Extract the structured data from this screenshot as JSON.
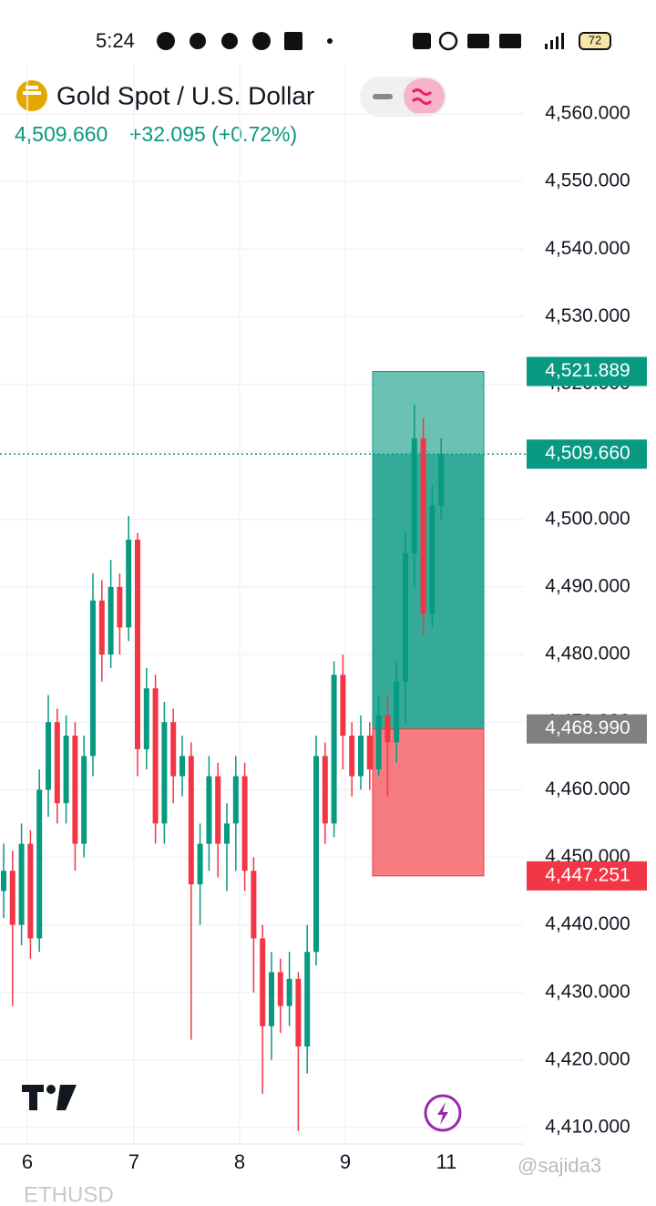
{
  "status_bar": {
    "time": "5:24",
    "battery": "72"
  },
  "header": {
    "symbol": "Gold Spot / U.S. Dollar",
    "price": "4,509.660",
    "change": "+32.095 (+0.72%)"
  },
  "chart_data": {
    "type": "candlestick",
    "x_labels": [
      "6",
      "7",
      "8",
      "9",
      "11"
    ],
    "ylim": [
      4407.57,
      4567.42
    ],
    "yticks": [
      {
        "value": 4560,
        "label": "4,560.000"
      },
      {
        "value": 4550,
        "label": "4,550.000"
      },
      {
        "value": 4540,
        "label": "4,540.000"
      },
      {
        "value": 4530,
        "label": "4,530.000"
      },
      {
        "value": 4520,
        "label": "4,520.000"
      },
      {
        "value": 4510,
        "label": "4,510.000"
      },
      {
        "value": 4500,
        "label": "4,500.000"
      },
      {
        "value": 4490,
        "label": "4,490.000"
      },
      {
        "value": 4480,
        "label": "4,480.000"
      },
      {
        "value": 4470,
        "label": "4,470.000"
      },
      {
        "value": 4460,
        "label": "4,460.000"
      },
      {
        "value": 4450,
        "label": "4,450.000"
      },
      {
        "value": 4440,
        "label": "4,440.000"
      },
      {
        "value": 4430,
        "label": "4,430.000"
      },
      {
        "value": 4420,
        "label": "4,420.000"
      },
      {
        "value": 4410,
        "label": "4,410.000"
      }
    ],
    "grid": true,
    "up_color": "#089981",
    "down_color": "#f23645",
    "open": [
      4445,
      4448,
      4440,
      4452,
      4438,
      4460,
      4470,
      4458,
      4468,
      4452,
      4465,
      4488,
      4480,
      4490,
      4484,
      4497,
      4466,
      4475,
      4455,
      4470,
      4462,
      4465,
      4446,
      4452,
      4462,
      4452,
      4455,
      4462,
      4448,
      4438,
      4425,
      4433,
      4428,
      4432,
      4422,
      4436,
      4465,
      4455,
      4477,
      4468,
      4462,
      4468,
      4463,
      4471,
      4467,
      4476,
      4495,
      4512,
      4486,
      4502
    ],
    "high": [
      4452,
      4451,
      4455,
      4454,
      4463,
      4474,
      4472,
      4471,
      4470,
      4468,
      4492,
      4491,
      4494,
      4492,
      4500.5,
      4498,
      4478,
      4477,
      4473,
      4472,
      4468,
      4467,
      4455,
      4465,
      4464,
      4458,
      4465,
      4464,
      4450,
      4440,
      4436,
      4435,
      4436,
      4433,
      4440,
      4468,
      4467,
      4479,
      4480,
      4470,
      4471,
      4470,
      4474,
      4474,
      4479,
      4498,
      4517,
      4515,
      4505,
      4512
    ],
    "low": [
      4441,
      4428,
      4437,
      4435,
      4436,
      4456,
      4455,
      4455,
      4448,
      4450,
      4462,
      4476,
      4478,
      4480,
      4482,
      4462,
      4463,
      4452,
      4452,
      4458,
      4459,
      4423,
      4440,
      4448,
      4447,
      4445,
      4448,
      4445,
      4430,
      4415,
      4420,
      4424,
      4425,
      4409.5,
      4418,
      4434,
      4452,
      4453,
      4463,
      4459,
      4460,
      4460,
      4462,
      4459,
      4464,
      4470,
      4490,
      4483,
      4484,
      4500
    ],
    "close": [
      4448,
      4440,
      4452,
      4438,
      4460,
      4470,
      4458,
      4468,
      4452,
      4465,
      4488,
      4480,
      4490,
      4484,
      4497,
      4466,
      4475,
      4455,
      4470,
      4462,
      4465,
      4446,
      4452,
      4462,
      4452,
      4455,
      4462,
      4448,
      4438,
      4425,
      4433,
      4428,
      4432,
      4422,
      4436,
      4465,
      4455,
      4477,
      4468,
      4462,
      4468,
      4463,
      4471,
      4467,
      4476,
      4495,
      4512,
      4486,
      4502,
      4509.66
    ],
    "last_price": {
      "value": 4509.66,
      "label": "4,509.660"
    },
    "position": {
      "target": {
        "value": 4521.889,
        "label": "4,521.889"
      },
      "entry": {
        "value": 4468.99,
        "label": "4,468.990"
      },
      "stop": {
        "value": 4447.251,
        "label": "4,447.251"
      }
    }
  },
  "footer": {
    "next_symbol": "ETHUSD",
    "watermark": "@sajida3"
  }
}
